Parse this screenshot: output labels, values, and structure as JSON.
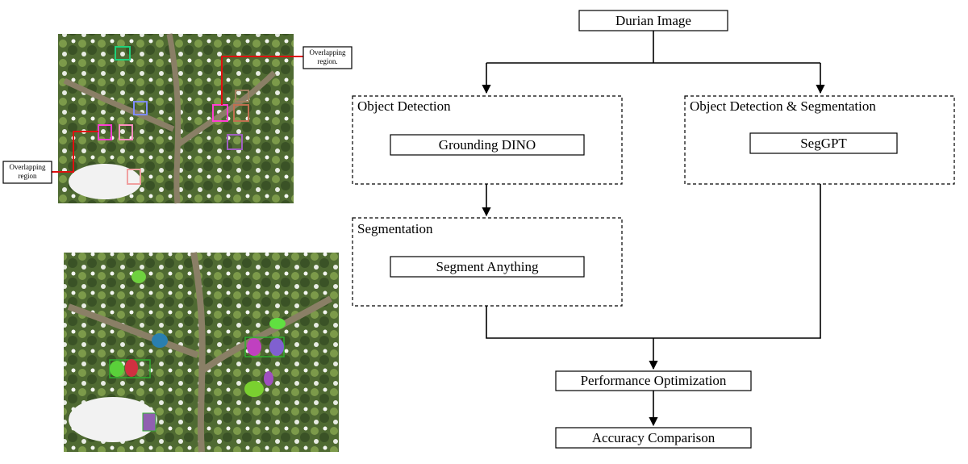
{
  "nodes": [
    {
      "label": "Durian Image"
    },
    {
      "label": "Object Detection"
    },
    {
      "label": "Grounding DINO"
    },
    {
      "label": "Object Detection & Segmentation"
    },
    {
      "label": "SegGPT"
    },
    {
      "label": "Segmentation"
    },
    {
      "label": "Segment Anything"
    },
    {
      "label": "Performance Optimization"
    },
    {
      "label": "Accuracy Comparison"
    }
  ],
  "callouts": [
    {
      "lines": [
        "Overlapping",
        "region."
      ]
    },
    {
      "lines": [
        "Overlapping",
        "region"
      ]
    }
  ]
}
